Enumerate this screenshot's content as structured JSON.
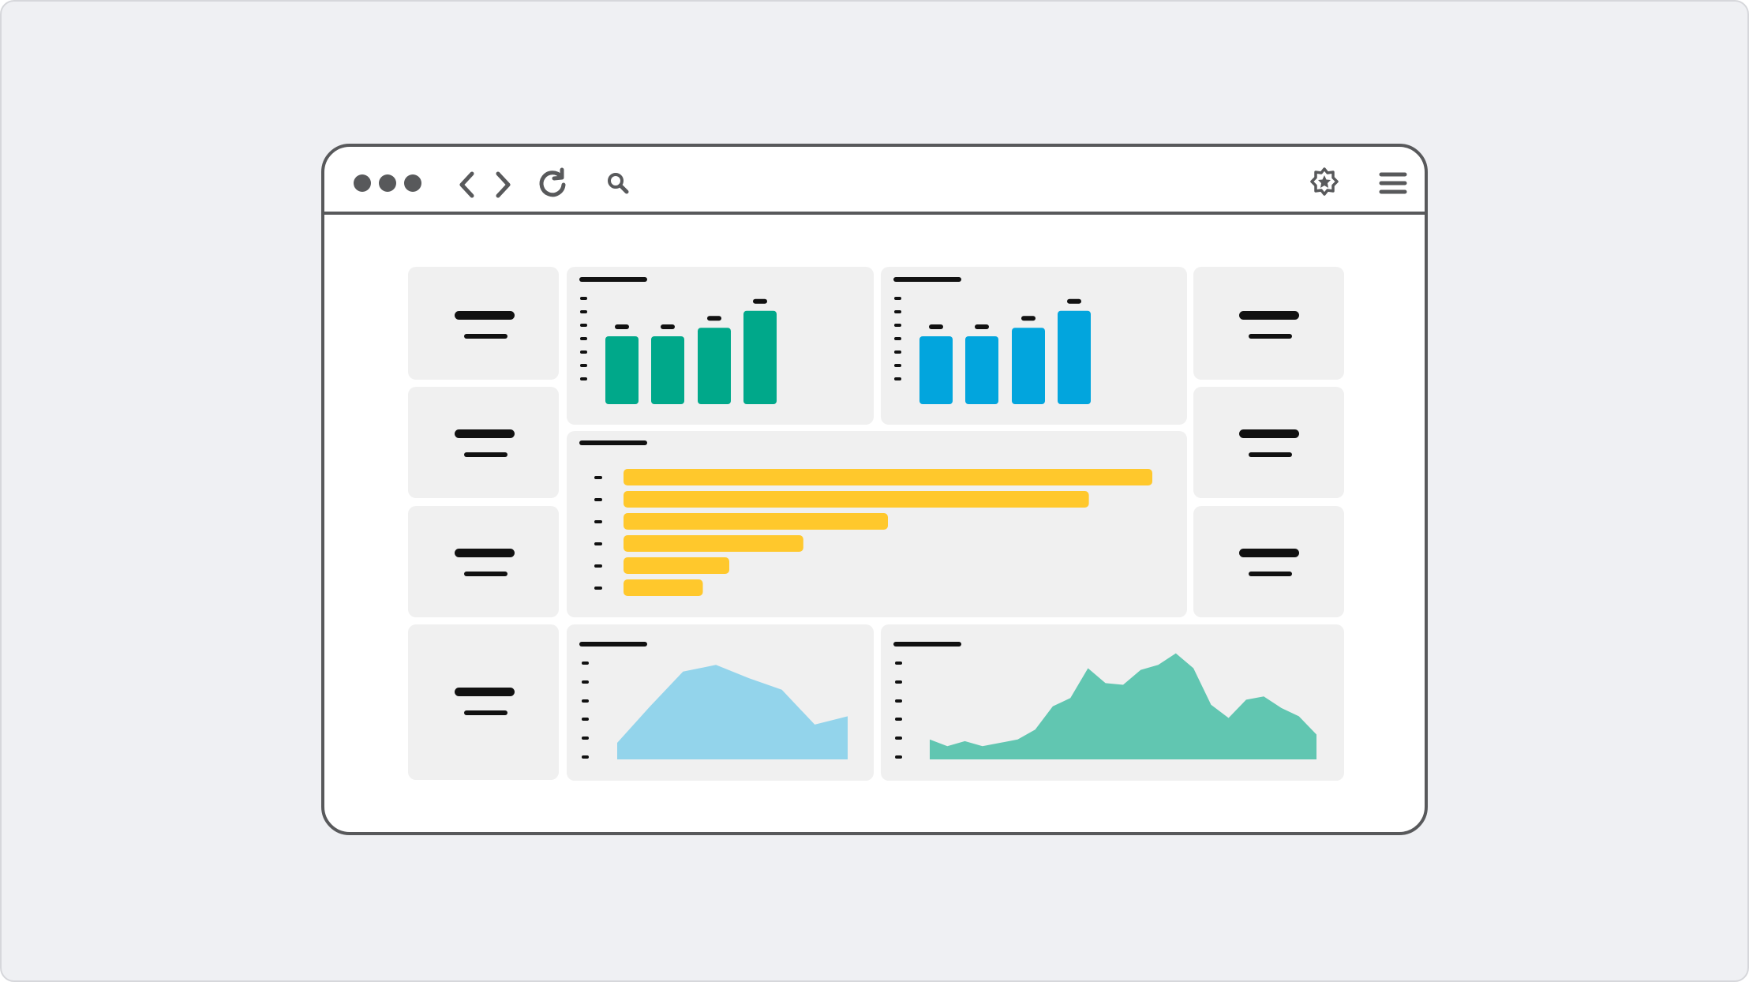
{
  "window": {
    "toolbar": {
      "icons": [
        "circle",
        "circle",
        "circle",
        "chevron-left-icon",
        "chevron-right-icon",
        "reload-icon",
        "search-icon",
        "star-badge-icon",
        "hamburger-menu-icon"
      ]
    }
  },
  "colors": {
    "background": "#eff0f3",
    "frame": "#58595b",
    "card": "#f0f0f0",
    "green": "#00a88a",
    "blue": "#02a5dd",
    "yellow": "#ffc82c",
    "light_blue": "#93d4eb",
    "teal": "#61c6b1"
  },
  "chart_data": [
    {
      "type": "bar",
      "values": [
        4,
        4,
        4.5,
        5.5
      ],
      "color": "#00a88a"
    },
    {
      "type": "bar",
      "values": [
        4,
        4,
        4.5,
        5.5
      ],
      "color": "#02a5dd"
    },
    {
      "type": "bar",
      "orientation": "horizontal",
      "values": [
        100,
        88,
        50,
        34,
        20,
        15
      ],
      "color": "#ffc82c"
    },
    {
      "type": "area",
      "values": [
        1.0,
        3.2,
        5.3,
        5.7,
        4.9,
        4.2,
        2.1,
        2.6
      ],
      "color": "#93d4eb"
    },
    {
      "type": "area",
      "values": [
        1.2,
        0.8,
        1.1,
        0.8,
        1.0,
        1.2,
        1.8,
        3.2,
        3.7,
        5.5,
        4.6,
        4.5,
        5.4,
        5.7,
        6.4,
        5.5,
        3.3,
        2.5,
        3.6,
        3.8,
        3.1,
        2.6,
        1.5
      ],
      "color": "#61c6b1"
    }
  ]
}
